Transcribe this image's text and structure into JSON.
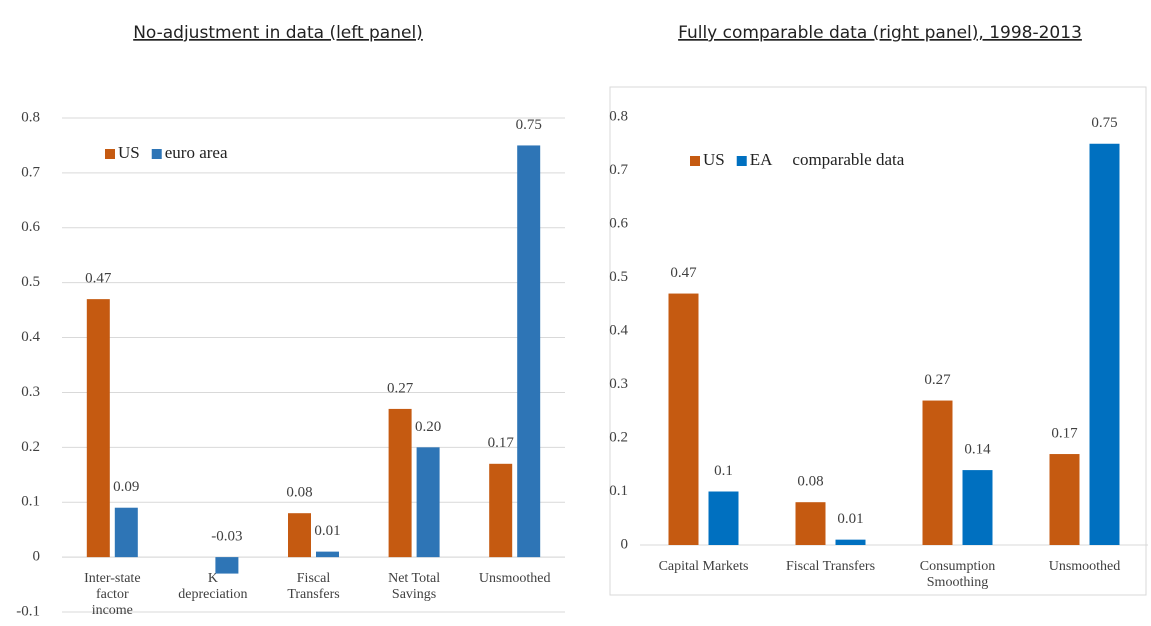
{
  "chart_data": [
    {
      "type": "bar",
      "title": "No-adjustment in data (left panel)",
      "categories": [
        "Inter-state factor income",
        "K depreciation",
        "Fiscal Transfers",
        "Net Total Savings",
        "Unsmoothed"
      ],
      "series": [
        {
          "name": "US",
          "color": "#c55a11",
          "values": [
            0.47,
            null,
            0.08,
            0.27,
            0.17
          ],
          "value_labels": [
            "0.47",
            null,
            "0.08",
            "0.27",
            "0.17"
          ]
        },
        {
          "name": "euro area",
          "color": "#2e75b6",
          "values": [
            0.09,
            -0.03,
            0.01,
            0.2,
            0.75
          ],
          "value_labels": [
            "0.09",
            "-0.03",
            "0.01",
            "0.20",
            "0.75"
          ]
        }
      ],
      "ylim": [
        -0.1,
        0.8
      ],
      "yticks": [
        -0.1,
        0,
        0.1,
        0.2,
        0.3,
        0.4,
        0.5,
        0.6,
        0.7,
        0.8
      ],
      "grid": true
    },
    {
      "type": "bar",
      "title": "Fully comparable data (right panel), 1998-2013",
      "annotation": "comparable data",
      "categories": [
        "Capital Markets",
        "Fiscal Transfers",
        "Consumption Smoothing",
        "Unsmoothed"
      ],
      "series": [
        {
          "name": "US",
          "color": "#c55a11",
          "values": [
            0.47,
            0.08,
            0.27,
            0.17
          ]
        },
        {
          "name": "EA",
          "color": "#0070c0",
          "values": [
            0.1,
            0.01,
            0.14,
            0.75
          ]
        }
      ],
      "ylim": [
        0,
        0.8
      ],
      "yticks": [
        0,
        0.1,
        0.2,
        0.3,
        0.4,
        0.5,
        0.6,
        0.7,
        0.8
      ],
      "grid": false
    }
  ]
}
